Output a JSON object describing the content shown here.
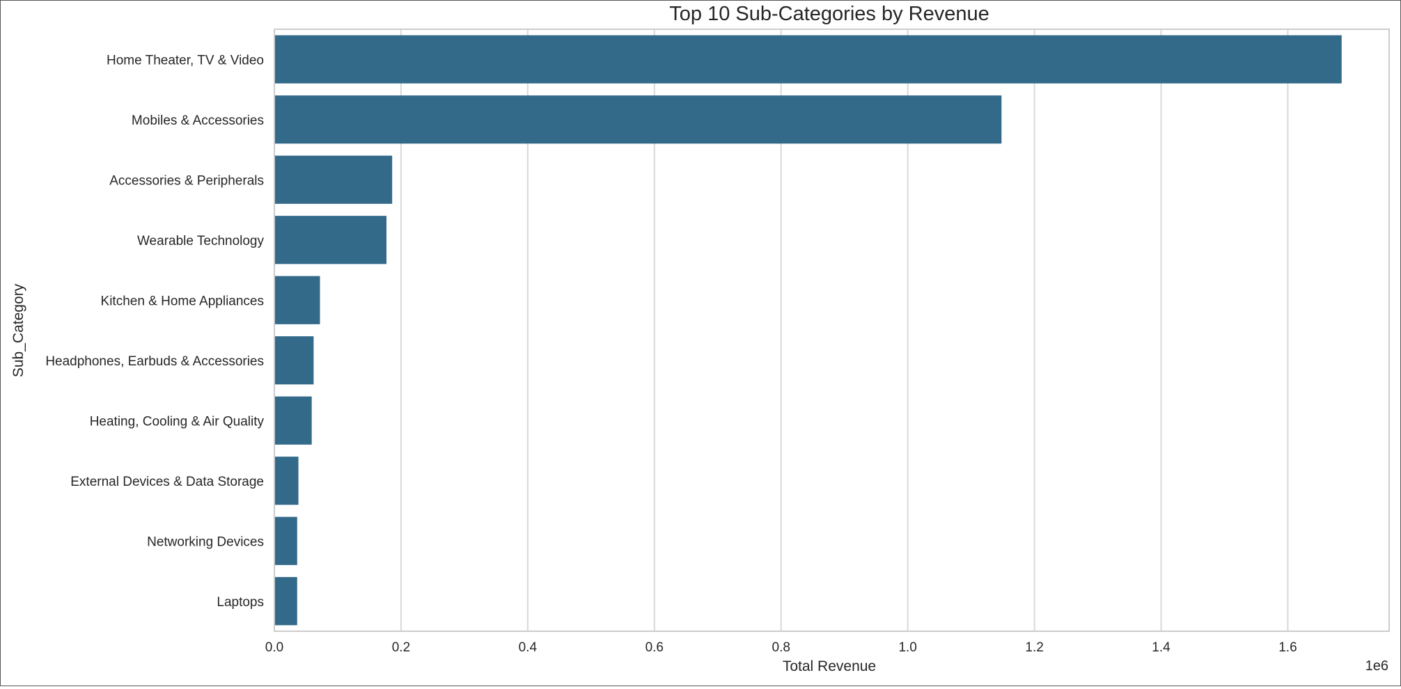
{
  "chart_data": {
    "type": "bar",
    "orientation": "horizontal",
    "title": "Top 10 Sub-Categories by Revenue",
    "xlabel": "Total Revenue",
    "ylabel": "Sub_Category",
    "x_offset_label": "1e6",
    "xlim": [
      0,
      1.76
    ],
    "x_ticks": [
      "0.0",
      "0.2",
      "0.4",
      "0.6",
      "0.8",
      "1.0",
      "1.2",
      "1.4",
      "1.6"
    ],
    "grid": true,
    "bar_color": "#336a8a",
    "categories": [
      "Home Theater, TV & Video",
      "Mobiles & Accessories",
      "Accessories & Peripherals",
      "Wearable Technology",
      "Kitchen & Home Appliances",
      "Headphones, Earbuds & Accessories",
      "Heating, Cooling & Air Quality",
      "External Devices & Data Storage",
      "Networking Devices",
      "Laptops"
    ],
    "values": [
      1.685,
      1.148,
      0.186,
      0.177,
      0.072,
      0.062,
      0.059,
      0.038,
      0.036,
      0.036
    ]
  }
}
